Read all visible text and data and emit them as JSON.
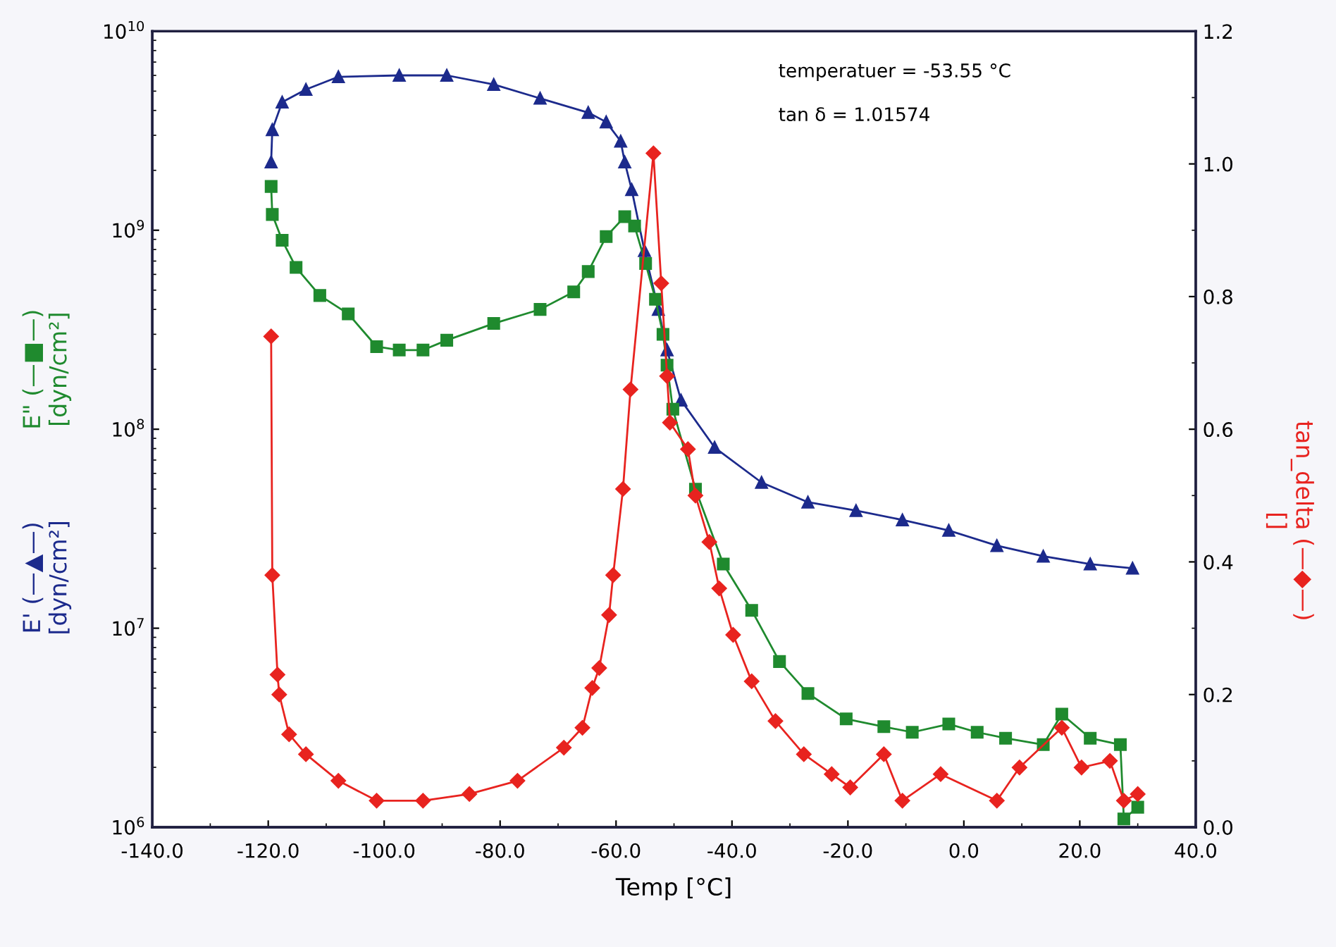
{
  "chart_data": {
    "type": "line",
    "xlabel": "Temp [°C]",
    "annotations": [
      "temperatuer = -53.55 °C",
      "tan δ = 1.01574"
    ],
    "log": "y",
    "grid": false,
    "xlim": [
      -140,
      40
    ],
    "xticks": [
      {
        "value": -140,
        "label": "-140.0"
      },
      {
        "value": -120,
        "label": "-120.0"
      },
      {
        "value": -100,
        "label": "-100.0"
      },
      {
        "value": -80,
        "label": "-80.0"
      },
      {
        "value": -60,
        "label": "-60.0"
      },
      {
        "value": -40,
        "label": "-40.0"
      },
      {
        "value": -20,
        "label": "-20.0"
      },
      {
        "value": 0,
        "label": "0.0"
      },
      {
        "value": 20,
        "label": "20.0"
      },
      {
        "value": 40,
        "label": "40.0"
      }
    ],
    "ylim": [
      1000000,
      10000000000
    ],
    "yticks": [
      {
        "value": 1000000,
        "label": "10$^{6}$"
      },
      {
        "value": 10000000,
        "label": "10$^{7}$"
      },
      {
        "value": 100000000,
        "label": "10$^{8}$"
      },
      {
        "value": 1000000000,
        "label": "10$^{9}$"
      },
      {
        "value": 10000000000,
        "label": "10$^{10}$"
      }
    ],
    "y2lim": [
      0,
      1.2
    ],
    "y2ticks": [
      {
        "value": 0,
        "label": "0.0"
      },
      {
        "value": 0.2,
        "label": "0.2"
      },
      {
        "value": 0.4,
        "label": "0.4"
      },
      {
        "value": 0.6,
        "label": "0.6"
      },
      {
        "value": 0.8,
        "label": "0.8"
      },
      {
        "value": 1.0,
        "label": "1.0"
      },
      {
        "value": 1.2,
        "label": "1.2"
      }
    ],
    "series": [
      {
        "name": "E' (—▲—)\n[dyn/cm²]",
        "color": "#1c2a8c",
        "marker": "triangle",
        "x": [
          -119.5,
          -119.3,
          -117.6,
          -113.5,
          -107.9,
          -97.4,
          -89.2,
          -81.1,
          -73.1,
          -64.8,
          -61.7,
          -59.2,
          -58.5,
          -57.3,
          -55.1,
          -52.7,
          -51.2,
          -48.8,
          -43.0,
          -34.9,
          -26.9,
          -18.6,
          -10.6,
          -2.6,
          5.7,
          13.7,
          21.8,
          29.1
        ],
        "values": [
          2200000000.0,
          3200000000.0,
          4400000000.0,
          5100000000.0,
          5900000000.0,
          6000000000.0,
          6000000000.0,
          5400000000.0,
          4600000000.0,
          3900000000.0,
          3500000000.0,
          2800000000.0,
          2200000000.0,
          1600000000.0,
          790000000.0,
          400000000.0,
          250000000.0,
          140000000.0,
          81000000.0,
          54000000.0,
          43000000.0,
          39000000.0,
          35000000.0,
          31000000.0,
          26000000.0,
          23000000.0,
          21000000.0,
          20000000.0
        ]
      },
      {
        "name": "E\" (—■—)\n[dyn/cm²]",
        "color": "#1f8a2e",
        "marker": "square",
        "x": [
          -119.5,
          -119.3,
          -117.6,
          -115.2,
          -111.1,
          -106.2,
          -101.3,
          -97.4,
          -93.3,
          -89.2,
          -81.1,
          -73.1,
          -67.3,
          -64.8,
          -61.7,
          -58.5,
          -56.8,
          -54.9,
          -53.2,
          -51.9,
          -51.2,
          -50.2,
          -46.3,
          -41.5,
          -36.6,
          -31.8,
          -26.9,
          -20.3,
          -13.8,
          -8.9,
          -2.6,
          2.3,
          7.2,
          13.7,
          16.9,
          21.8,
          27.0,
          27.6,
          30.0
        ],
        "values": [
          1660000000.0,
          1200000000.0,
          890000000.0,
          650000000.0,
          470000000.0,
          380000000.0,
          260000000.0,
          250000000.0,
          250000000.0,
          280000000.0,
          340000000.0,
          400000000.0,
          490000000.0,
          620000000.0,
          930000000.0,
          1170000000.0,
          1050000000.0,
          680000000.0,
          450000000.0,
          300000000.0,
          210000000.0,
          126000000.0,
          50000000.0,
          21000000.0,
          12300000.0,
          6800000.0,
          4700000.0,
          3500000.0,
          3200000.0,
          3000000.0,
          3300000.0,
          3000000.0,
          2800000.0,
          2600000.0,
          3700000.0,
          2800000.0,
          2600000.0,
          1100000.0,
          1260000.0
        ]
      },
      {
        "name": "tan_delta (—◆—)\n[]",
        "color": "#e8231f",
        "marker": "diamond",
        "axis": "y2",
        "x": [
          -119.5,
          -119.3,
          -118.4,
          -118.1,
          -116.4,
          -113.5,
          -107.9,
          -101.3,
          -93.3,
          -85.3,
          -77.0,
          -69.0,
          -65.8,
          -64.1,
          -62.9,
          -61.2,
          -60.5,
          -58.8,
          -57.5,
          -53.55,
          -52.2,
          -51.2,
          -50.7,
          -47.6,
          -46.3,
          -43.9,
          -42.2,
          -39.8,
          -36.6,
          -32.5,
          -27.6,
          -22.8,
          -19.6,
          -13.8,
          -10.6,
          -4.0,
          5.7,
          9.6,
          16.9,
          20.3,
          25.2,
          27.6,
          30.0
        ],
        "values": [
          0.74,
          0.38,
          0.23,
          0.2,
          0.14,
          0.11,
          0.07,
          0.04,
          0.04,
          0.05,
          0.07,
          0.12,
          0.15,
          0.21,
          0.24,
          0.32,
          0.38,
          0.51,
          0.66,
          1.016,
          0.82,
          0.68,
          0.61,
          0.57,
          0.5,
          0.43,
          0.36,
          0.29,
          0.22,
          0.16,
          0.11,
          0.08,
          0.06,
          0.11,
          0.04,
          0.08,
          0.04,
          0.09,
          0.15,
          0.09,
          0.1,
          0.04,
          0.05
        ]
      }
    ]
  }
}
